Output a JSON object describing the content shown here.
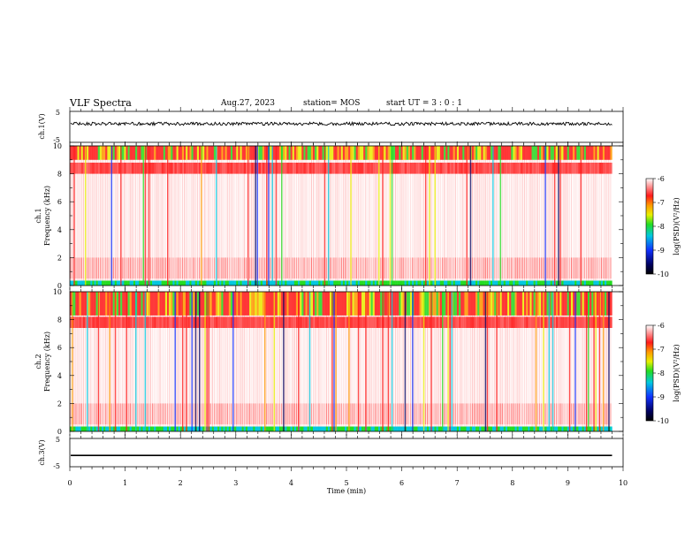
{
  "header": {
    "title": "VLF Spectra",
    "date": "Aug.27, 2023",
    "station": "station= MOS",
    "start_ut": "start UT =  3 : 0 : 1"
  },
  "colors": {
    "white": "#ffffff",
    "red": "#ff1a1a",
    "orange": "#ff9a00",
    "yellow": "#e8f000",
    "green": "#22dd22",
    "cyan": "#00c8e0",
    "blue": "#1030ff",
    "navy": "#000060",
    "black": "#000000"
  },
  "chart_data": [
    {
      "type": "line",
      "panel": "ch1-waveform",
      "ylabel": "ch.1(V)",
      "ylim": [
        -5,
        5
      ],
      "yticks": [
        "5",
        "-5"
      ],
      "xlim": [
        0,
        10
      ],
      "series": [
        {
          "trace": "noisy flat signal near +1 V, ends at 9.8 min",
          "level": 1.0,
          "amplitude": 0.5
        }
      ]
    },
    {
      "type": "heatmap",
      "panel": "ch1-spectrogram",
      "ylabel": "ch.1 Frequency (kHz)",
      "ylim": [
        0,
        10
      ],
      "yticks": [
        "0",
        "2",
        "4",
        "6",
        "8",
        "10"
      ],
      "xlim": [
        0,
        10
      ],
      "colorbar": {
        "label": "log(PSD)(V²/Hz)",
        "range": [
          -10,
          -6
        ],
        "ticks": [
          "-6",
          "-7",
          "-8",
          "-9",
          "-10"
        ]
      }
    },
    {
      "type": "heatmap",
      "panel": "ch2-spectrogram",
      "ylabel": "ch.2 Frequency (kHz)",
      "ylim": [
        0,
        10
      ],
      "yticks": [
        "0",
        "2",
        "4",
        "6",
        "8",
        "10"
      ],
      "xlim": [
        0,
        10
      ],
      "colorbar": {
        "label": "log(PSD)(V²/Hz)",
        "range": [
          -10,
          -6
        ],
        "ticks": [
          "-6",
          "-7",
          "-8",
          "-9",
          "-10"
        ]
      }
    },
    {
      "type": "line",
      "panel": "ch3-waveform",
      "ylabel": "ch.3(V)",
      "ylim": [
        -5,
        5
      ],
      "yticks": [
        "5",
        "-5"
      ],
      "xlim": [
        0,
        10
      ],
      "series": [
        {
          "trace": "flat line near -1 V",
          "level": -1.0,
          "amplitude": 0.0
        }
      ]
    }
  ],
  "xaxis": {
    "label": "Time (min)",
    "ticks": [
      "0",
      "1",
      "2",
      "3",
      "4",
      "5",
      "6",
      "7",
      "8",
      "9",
      "10"
    ],
    "data_end": 9.8
  }
}
